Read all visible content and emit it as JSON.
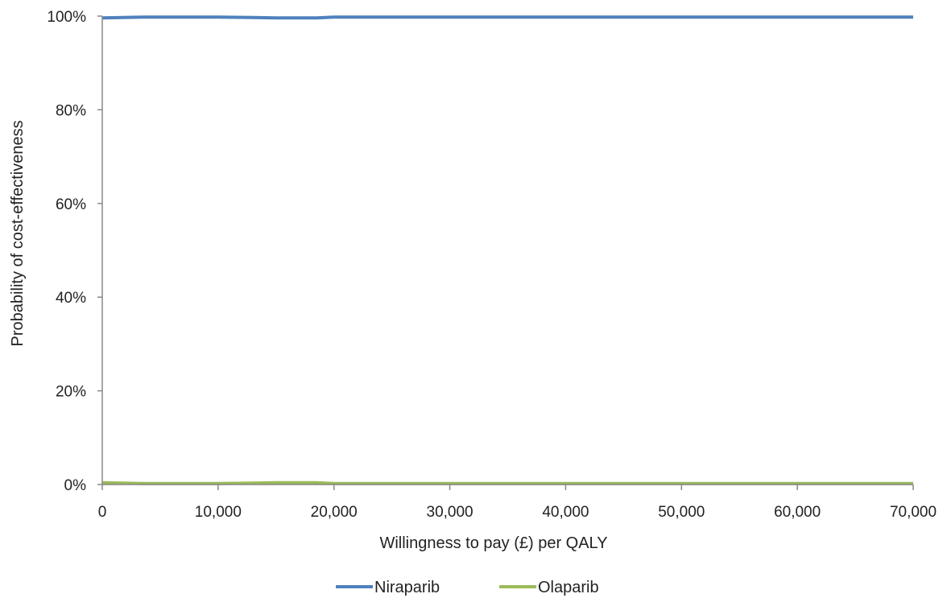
{
  "chart_data": {
    "type": "line",
    "xlabel": "Willingness to pay (£) per QALY",
    "ylabel": "Probability of cost-effectiveness",
    "xlim": [
      0,
      70000
    ],
    "ylim": [
      0,
      1
    ],
    "x_ticks": [
      0,
      10000,
      20000,
      30000,
      40000,
      50000,
      60000,
      70000
    ],
    "x_tick_labels": [
      "0",
      "10,000",
      "20,000",
      "30,000",
      "40,000",
      "50,000",
      "60,000",
      "70,000"
    ],
    "y_ticks": [
      0,
      0.2,
      0.4,
      0.6,
      0.8,
      1.0
    ],
    "y_tick_labels": [
      "0%",
      "20%",
      "40%",
      "60%",
      "80%",
      "100%"
    ],
    "grid": false,
    "legend_position": "bottom",
    "series": [
      {
        "name": "Niraparib",
        "color": "#4F81BD",
        "x": [
          0,
          3500,
          10000,
          13000,
          15000,
          18500,
          20000,
          30000,
          40000,
          50000,
          60000,
          70000
        ],
        "y": [
          0.996,
          0.998,
          0.998,
          0.997,
          0.996,
          0.996,
          0.998,
          0.998,
          0.998,
          0.998,
          0.998,
          0.998
        ]
      },
      {
        "name": "Olaparib",
        "color": "#9BBB59",
        "x": [
          0,
          3500,
          10000,
          13000,
          15000,
          18500,
          20000,
          30000,
          40000,
          50000,
          60000,
          70000
        ],
        "y": [
          0.004,
          0.002,
          0.002,
          0.003,
          0.004,
          0.004,
          0.002,
          0.002,
          0.002,
          0.002,
          0.002,
          0.002
        ]
      }
    ]
  }
}
